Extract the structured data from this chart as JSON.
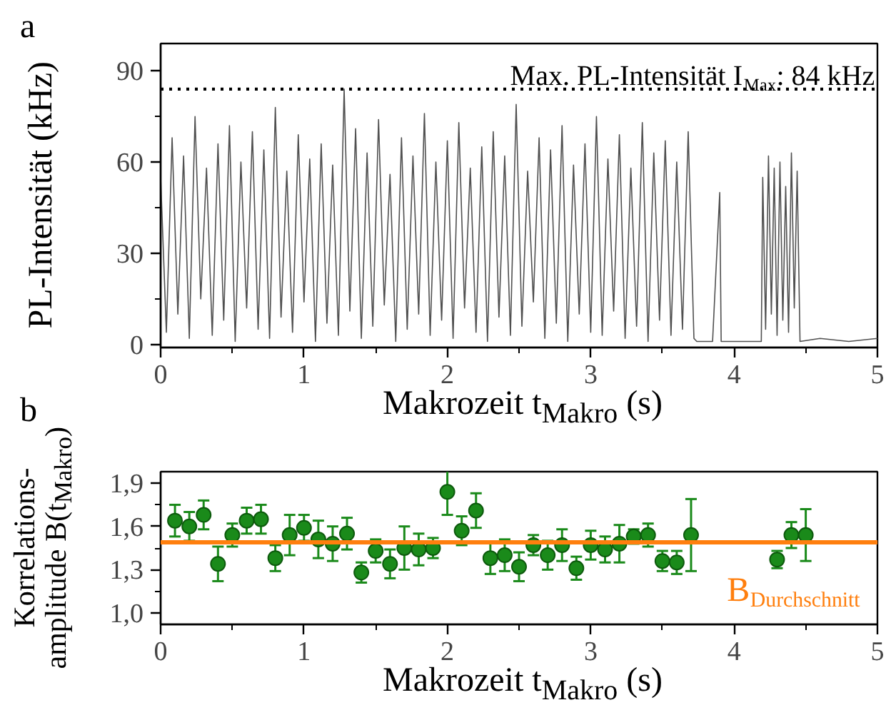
{
  "chart_data": [
    {
      "type": "line",
      "ylabel": "PL-Intensität (kHz)",
      "xlabel": "Makrozeit t$_{Makro}$ (s)",
      "annotations": [
        "a"
      ],
      "color": "#505050",
      "line_style": "solid",
      "marker": "none",
      "grid": false,
      "x": [
        0,
        0.04,
        0.08,
        0.12,
        0.16,
        0.2,
        0.24,
        0.28,
        0.32,
        0.36,
        0.4,
        0.44,
        0.48,
        0.52,
        0.56,
        0.6,
        0.64,
        0.68,
        0.72,
        0.76,
        0.8,
        0.84,
        0.88,
        0.92,
        0.96,
        1,
        1.04,
        1.08,
        1.12,
        1.16,
        1.2,
        1.24,
        1.28,
        1.32,
        1.36,
        1.4,
        1.44,
        1.48,
        1.52,
        1.56,
        1.6,
        1.64,
        1.68,
        1.72,
        1.76,
        1.8,
        1.84,
        1.88,
        1.92,
        1.96,
        2,
        2.04,
        2.08,
        2.12,
        2.16,
        2.2,
        2.24,
        2.28,
        2.32,
        2.36,
        2.4,
        2.44,
        2.48,
        2.52,
        2.56,
        2.6,
        2.64,
        2.68,
        2.72,
        2.76,
        2.8,
        2.84,
        2.88,
        2.92,
        2.96,
        3,
        3.04,
        3.08,
        3.12,
        3.16,
        3.2,
        3.24,
        3.28,
        3.32,
        3.36,
        3.4,
        3.44,
        3.48,
        3.52,
        3.56,
        3.6,
        3.64,
        3.68,
        3.72,
        3.74,
        3.85,
        3.9,
        3.91,
        4.0,
        4.1,
        4.19,
        4.2,
        4.22,
        4.24,
        4.26,
        4.28,
        4.3,
        4.32,
        4.34,
        4.36,
        4.38,
        4.4,
        4.42,
        4.44,
        4.46,
        4.6,
        4.8,
        5.0
      ],
      "values": [
        55,
        4,
        68,
        10,
        62,
        2,
        75,
        15,
        58,
        3,
        66,
        8,
        72,
        1,
        60,
        12,
        70,
        5,
        64,
        2,
        78,
        9,
        57,
        4,
        69,
        14,
        61,
        1,
        66,
        7,
        59,
        3,
        84,
        11,
        71,
        2,
        63,
        6,
        74,
        13,
        56,
        1,
        68,
        5,
        62,
        10,
        76,
        3,
        60,
        8,
        67,
        2,
        73,
        12,
        58,
        4,
        65,
        1,
        70,
        9,
        62,
        3,
        79,
        6,
        57,
        14,
        68,
        2,
        64,
        7,
        72,
        1,
        59,
        10,
        66,
        4,
        75,
        3,
        61,
        11,
        69,
        2,
        58,
        6,
        73,
        1,
        63,
        8,
        67,
        3,
        60,
        5,
        70,
        2,
        1,
        1,
        50,
        1,
        1,
        1,
        1,
        55,
        5,
        62,
        10,
        58,
        3,
        60,
        8,
        52,
        4,
        63,
        12,
        57,
        1,
        2,
        1,
        2
      ],
      "xlim": [
        0,
        5
      ],
      "ylim": [
        -1,
        99
      ],
      "xticks": [
        0,
        1,
        2,
        3,
        4,
        5,
        {
          "value": 0.5,
          "label": null
        },
        {
          "value": 1.5,
          "label": null
        },
        {
          "value": 2.5,
          "label": null
        },
        {
          "value": 3.5,
          "label": null
        },
        {
          "value": 4.5,
          "label": null
        }
      ],
      "yticks": [
        0,
        30,
        60,
        90,
        {
          "value": 15,
          "label": null
        },
        {
          "value": 45,
          "label": null
        },
        {
          "value": 75,
          "label": null
        }
      ],
      "ref_lines": [
        {
          "axis": "y",
          "value": 84,
          "label": "Max. PL-Intensität I$_{Max}$: 84 kHz",
          "color": "#000000",
          "line_style": "dotted"
        }
      ]
    },
    {
      "type": "scatter",
      "ylabel": "Korrelations-\namplitude B(t$_{Makro}$)",
      "xlabel": "Makrozeit t$_{Makro}$ (s)",
      "annotations": [
        "b"
      ],
      "color": "#1a8a1a",
      "marker": "circle",
      "grid": false,
      "x": [
        0.1,
        0.2,
        0.3,
        0.4,
        0.5,
        0.6,
        0.7,
        0.8,
        0.9,
        1.0,
        1.1,
        1.2,
        1.3,
        1.4,
        1.5,
        1.6,
        1.7,
        1.8,
        1.9,
        2.0,
        2.1,
        2.2,
        2.3,
        2.4,
        2.5,
        2.6,
        2.7,
        2.8,
        2.9,
        3.0,
        3.1,
        3.2,
        3.3,
        3.4,
        3.5,
        3.6,
        3.7,
        4.3,
        4.4,
        4.5
      ],
      "values": [
        1.64,
        1.6,
        1.68,
        1.34,
        1.54,
        1.64,
        1.65,
        1.38,
        1.54,
        1.59,
        1.51,
        1.48,
        1.55,
        1.28,
        1.43,
        1.34,
        1.45,
        1.44,
        1.45,
        1.84,
        1.57,
        1.71,
        1.38,
        1.4,
        1.32,
        1.47,
        1.4,
        1.47,
        1.31,
        1.47,
        1.44,
        1.48,
        1.53,
        1.54,
        1.36,
        1.35,
        1.54,
        1.37,
        1.54,
        1.54
      ],
      "errors": [
        0.11,
        0.1,
        0.1,
        0.12,
        0.08,
        0.09,
        0.1,
        0.09,
        0.14,
        0.09,
        0.13,
        0.12,
        0.11,
        0.07,
        0.08,
        0.1,
        0.15,
        0.11,
        0.07,
        0.16,
        0.1,
        0.12,
        0.11,
        0.11,
        0.1,
        0.07,
        0.1,
        0.11,
        0.08,
        0.1,
        0.09,
        0.13,
        0.05,
        0.08,
        0.07,
        0.08,
        0.25,
        0.06,
        0.09,
        0.18
      ],
      "xlim": [
        0,
        5
      ],
      "ylim": [
        0.92,
        1.98
      ],
      "xticks": [
        0,
        1,
        2,
        3,
        4,
        5,
        {
          "value": 0.5,
          "label": null
        },
        {
          "value": 1.5,
          "label": null
        },
        {
          "value": 2.5,
          "label": null
        },
        {
          "value": 3.5,
          "label": null
        },
        {
          "value": 4.5,
          "label": null
        }
      ],
      "yticks": [
        {
          "value": 1.0,
          "label": "1,0"
        },
        {
          "value": 1.3,
          "label": "1,3"
        },
        {
          "value": 1.6,
          "label": "1,6"
        },
        {
          "value": 1.9,
          "label": "1,9"
        },
        {
          "value": 1.15,
          "label": null
        },
        {
          "value": 1.45,
          "label": null
        },
        {
          "value": 1.75,
          "label": null
        }
      ],
      "ref_lines": [
        {
          "axis": "y",
          "value": 1.49,
          "label": "B$_{Durchschnitt}$",
          "color": "#ff7f0e",
          "line_style": "solid"
        }
      ]
    }
  ]
}
